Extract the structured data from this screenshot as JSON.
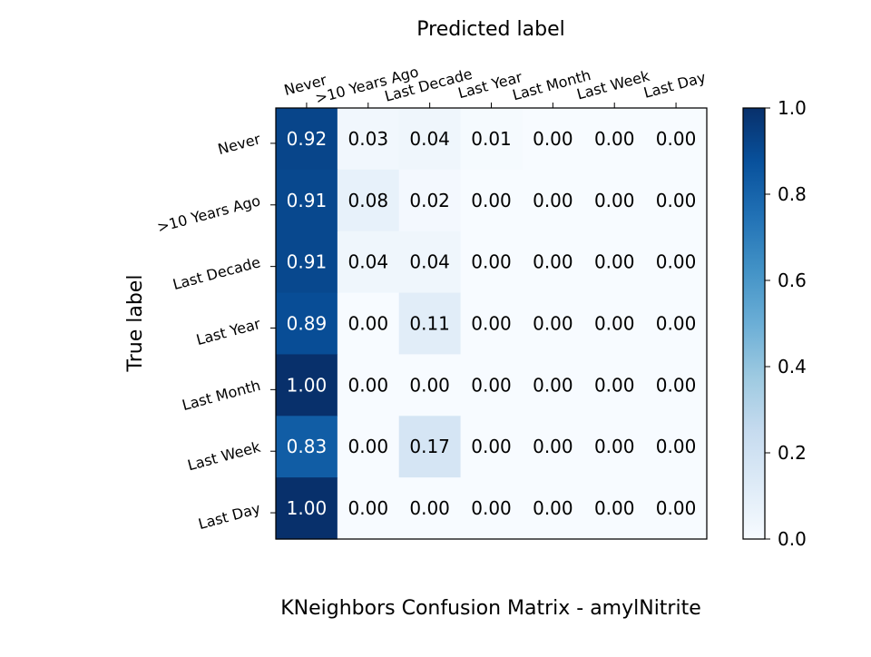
{
  "chart_data": {
    "type": "heatmap",
    "title": "KNeighbors Confusion Matrix - amylNitrite",
    "xlabel": "Predicted label",
    "ylabel": "True label",
    "x_categories": [
      "Never",
      ">10 Years Ago",
      "Last Decade",
      "Last Year",
      "Last Month",
      "Last Week",
      "Last Day"
    ],
    "y_categories": [
      "Never",
      ">10 Years Ago",
      "Last Decade",
      "Last Year",
      "Last Month",
      "Last Week",
      "Last Day"
    ],
    "values": [
      [
        0.92,
        0.03,
        0.04,
        0.01,
        0.0,
        0.0,
        0.0
      ],
      [
        0.91,
        0.08,
        0.02,
        0.0,
        0.0,
        0.0,
        0.0
      ],
      [
        0.91,
        0.04,
        0.04,
        0.0,
        0.0,
        0.0,
        0.0
      ],
      [
        0.89,
        0.0,
        0.11,
        0.0,
        0.0,
        0.0,
        0.0
      ],
      [
        1.0,
        0.0,
        0.0,
        0.0,
        0.0,
        0.0,
        0.0
      ],
      [
        0.83,
        0.0,
        0.17,
        0.0,
        0.0,
        0.0,
        0.0
      ],
      [
        1.0,
        0.0,
        0.0,
        0.0,
        0.0,
        0.0,
        0.0
      ]
    ],
    "colormap": "Blues",
    "colorbar_range": [
      0.0,
      1.0
    ],
    "colorbar_ticks": [
      "0.0",
      "0.2",
      "0.4",
      "0.6",
      "0.8",
      "1.0"
    ],
    "x_tick_position": "top",
    "grid": false
  }
}
